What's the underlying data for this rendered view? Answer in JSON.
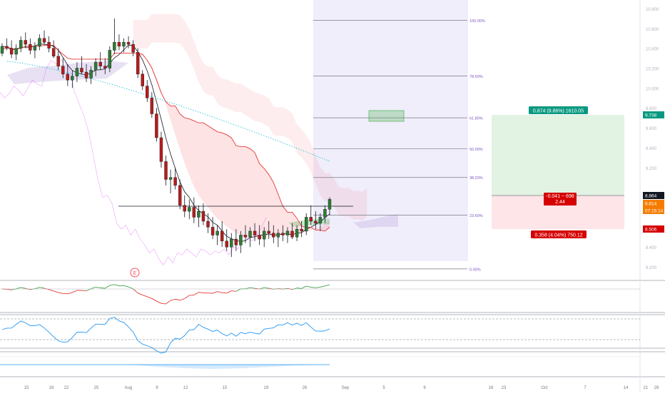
{
  "chart_data": {
    "type": "candlestick",
    "price_axis": {
      "ticks": [
        "10.800",
        "10.600",
        "10.400",
        "10.200",
        "10.000",
        "9.800",
        "9.600",
        "9.400",
        "9.200",
        "8.800",
        "8.600",
        "8.400",
        "8.200"
      ],
      "ylim": [
        8.1,
        10.9
      ]
    },
    "price_tags": [
      {
        "label": "9.738",
        "color": "#089981"
      },
      {
        "label": "8.864",
        "color": "#131722"
      },
      {
        "label": "8.814",
        "color": "#f57c00"
      },
      {
        "label": "07:15:14",
        "color": "#f57c00"
      },
      {
        "label": "8.506",
        "color": "#d50000"
      }
    ],
    "time_axis": {
      "labels": [
        "15",
        "18",
        "22",
        "25",
        "Aug",
        "8",
        "12",
        "15",
        "19",
        "26",
        "Sep",
        "5",
        "9",
        "16",
        "23",
        "Oct",
        "7",
        "14",
        "21",
        "28"
      ]
    },
    "event_marker": "E",
    "fib_levels": [
      {
        "label": "100.00%",
        "price": 10.68
      },
      {
        "label": "78.60%",
        "price": 10.12
      },
      {
        "label": "61.80%",
        "price": 9.7
      },
      {
        "label": "50.00%",
        "price": 9.39
      },
      {
        "label": "38.20%",
        "price": 9.1
      },
      {
        "label": "23.60%",
        "price": 8.72
      },
      {
        "label": "0.00%",
        "price": 8.18
      }
    ],
    "position_tool": {
      "target_label": "0.874 (9.86%) 1610.05",
      "entry_label_line1": "-0.041 ~ 698",
      "entry_label_line2": "2.44",
      "stop_label": "0.358 (4.04%) 750.12",
      "target_price": 9.738,
      "entry_price": 8.864,
      "stop_price": 8.506
    },
    "candles": [
      [
        10.35,
        10.45,
        10.32,
        10.42
      ],
      [
        10.42,
        10.5,
        10.38,
        10.4
      ],
      [
        10.4,
        10.48,
        10.3,
        10.34
      ],
      [
        10.34,
        10.44,
        10.28,
        10.4
      ],
      [
        10.4,
        10.52,
        10.36,
        10.48
      ],
      [
        10.48,
        10.56,
        10.4,
        10.44
      ],
      [
        10.44,
        10.5,
        10.34,
        10.38
      ],
      [
        10.38,
        10.46,
        10.3,
        10.42
      ],
      [
        10.42,
        10.54,
        10.38,
        10.5
      ],
      [
        10.5,
        10.58,
        10.44,
        10.46
      ],
      [
        10.46,
        10.52,
        10.36,
        10.4
      ],
      [
        10.4,
        10.48,
        10.3,
        10.32
      ],
      [
        10.32,
        10.4,
        10.18,
        10.22
      ],
      [
        10.22,
        10.3,
        10.1,
        10.14
      ],
      [
        10.14,
        10.24,
        10.02,
        10.08
      ],
      [
        10.08,
        10.18,
        10.0,
        10.12
      ],
      [
        10.12,
        10.26,
        10.06,
        10.2
      ],
      [
        10.2,
        10.32,
        10.14,
        10.16
      ],
      [
        10.16,
        10.24,
        10.06,
        10.1
      ],
      [
        10.1,
        10.22,
        10.04,
        10.18
      ],
      [
        10.18,
        10.3,
        10.12,
        10.26
      ],
      [
        10.26,
        10.36,
        10.18,
        10.22
      ],
      [
        10.22,
        10.3,
        10.14,
        10.2
      ],
      [
        10.2,
        10.42,
        10.16,
        10.38
      ],
      [
        10.38,
        10.7,
        10.34,
        10.46
      ],
      [
        10.46,
        10.54,
        10.38,
        10.42
      ],
      [
        10.42,
        10.5,
        10.36,
        10.46
      ],
      [
        10.46,
        10.52,
        10.4,
        10.44
      ],
      [
        10.44,
        10.48,
        10.32,
        10.36
      ],
      [
        10.36,
        10.4,
        10.1,
        10.14
      ],
      [
        10.14,
        10.18,
        9.98,
        10.02
      ],
      [
        10.02,
        10.08,
        9.86,
        9.9
      ],
      [
        9.9,
        9.96,
        9.7,
        9.74
      ],
      [
        9.74,
        9.8,
        9.46,
        9.5
      ],
      [
        9.5,
        9.56,
        9.2,
        9.26
      ],
      [
        9.26,
        9.32,
        9.02,
        9.08
      ],
      [
        9.08,
        9.18,
        8.94,
        9.1
      ],
      [
        9.1,
        9.2,
        8.98,
        9.02
      ],
      [
        9.02,
        9.08,
        8.78,
        8.82
      ],
      [
        8.82,
        8.92,
        8.7,
        8.76
      ],
      [
        8.76,
        8.88,
        8.68,
        8.8
      ],
      [
        8.8,
        8.9,
        8.64,
        8.7
      ],
      [
        8.7,
        8.82,
        8.6,
        8.76
      ],
      [
        8.76,
        8.84,
        8.62,
        8.66
      ],
      [
        8.66,
        8.74,
        8.54,
        8.6
      ],
      [
        8.6,
        8.7,
        8.48,
        8.52
      ],
      [
        8.52,
        8.62,
        8.42,
        8.56
      ],
      [
        8.56,
        8.66,
        8.4,
        8.46
      ],
      [
        8.46,
        8.58,
        8.36,
        8.4
      ],
      [
        8.4,
        8.54,
        8.3,
        8.48
      ],
      [
        8.48,
        8.58,
        8.36,
        8.42
      ],
      [
        8.42,
        8.56,
        8.34,
        8.52
      ],
      [
        8.52,
        8.62,
        8.44,
        8.5
      ],
      [
        8.5,
        8.6,
        8.4,
        8.56
      ],
      [
        8.56,
        8.64,
        8.46,
        8.52
      ],
      [
        8.52,
        8.62,
        8.42,
        8.48
      ],
      [
        8.48,
        8.6,
        8.4,
        8.56
      ],
      [
        8.56,
        8.66,
        8.48,
        8.54
      ],
      [
        8.54,
        8.62,
        8.44,
        8.5
      ],
      [
        8.5,
        8.58,
        8.4,
        8.54
      ],
      [
        8.54,
        8.62,
        8.46,
        8.52
      ],
      [
        8.52,
        8.6,
        8.44,
        8.56
      ],
      [
        8.56,
        8.64,
        8.48,
        8.5
      ],
      [
        8.5,
        8.62,
        8.46,
        8.58
      ],
      [
        8.58,
        8.66,
        8.5,
        8.56
      ],
      [
        8.56,
        8.74,
        8.52,
        8.7
      ],
      [
        8.7,
        8.82,
        8.62,
        8.66
      ],
      [
        8.66,
        8.76,
        8.58,
        8.64
      ],
      [
        8.64,
        8.74,
        8.56,
        8.7
      ],
      [
        8.7,
        8.82,
        8.64,
        8.78
      ],
      [
        8.78,
        8.9,
        8.72,
        8.88
      ]
    ]
  }
}
